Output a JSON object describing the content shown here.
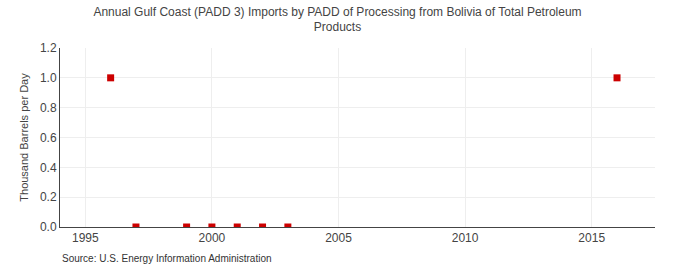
{
  "chart_data": {
    "type": "scatter",
    "title": "Annual Gulf Coast (PADD 3) Imports by PADD of Processing from Bolivia of Total Petroleum\nProducts",
    "ylabel": "Thousand Barrels per Day",
    "annotations": [
      "Source: U.S. Energy Information Administration"
    ],
    "x": [
      1996,
      1997,
      1999,
      2000,
      2001,
      2002,
      2003,
      2016
    ],
    "values": [
      1.0,
      0.0,
      0.0,
      0.0,
      0.0,
      0.0,
      0.0,
      1.0
    ],
    "color": "#cc0000",
    "marker": "square",
    "xlim": [
      1994.0,
      2017.5
    ],
    "xticks": [
      1995,
      2000,
      2005,
      2010,
      2015
    ],
    "ylim": [
      0.0,
      1.2
    ],
    "yticks": [
      {
        "value": 0.0,
        "label": "0.0"
      },
      0.2,
      0.4,
      0.6,
      0.8,
      {
        "value": 1.0,
        "label": "1.0"
      },
      1.2
    ],
    "grid": true
  }
}
